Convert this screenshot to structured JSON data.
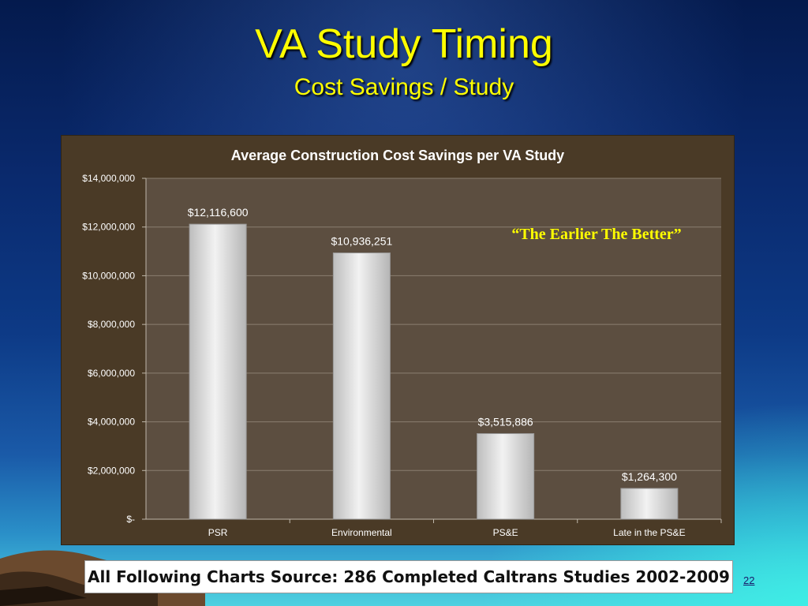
{
  "slide": {
    "title": "VA Study Timing",
    "subtitle": "Cost Savings / Study",
    "source_note": "All Following Charts Source: 286 Completed Caltrans Studies 2002-2009",
    "page_number": "22",
    "annotation": "“The Earlier The Better”"
  },
  "colors": {
    "title": "#ffff00",
    "chart_bg": "#4a3a26",
    "plot_bg": "#5c4e40",
    "bar_fill": "#d8d8d8",
    "text": "#ffffff"
  },
  "chart_data": {
    "type": "bar",
    "title": "Average Construction Cost Savings per VA Study",
    "categories": [
      "PSR",
      "Environmental",
      "PS&E",
      "Late in the PS&E"
    ],
    "values": [
      12116600,
      10936251,
      3515886,
      1264300
    ],
    "data_labels": [
      "$12,116,600",
      "$10,936,251",
      "$3,515,886",
      "$1,264,300"
    ],
    "ylim": [
      0,
      14000000
    ],
    "yticks": [
      0,
      2000000,
      4000000,
      6000000,
      8000000,
      10000000,
      12000000,
      14000000
    ],
    "ytick_labels": [
      "$-",
      "$2,000,000",
      "$4,000,000",
      "$6,000,000",
      "$8,000,000",
      "$10,000,000",
      "$12,000,000",
      "$14,000,000"
    ],
    "grid": true,
    "legend": "none"
  }
}
